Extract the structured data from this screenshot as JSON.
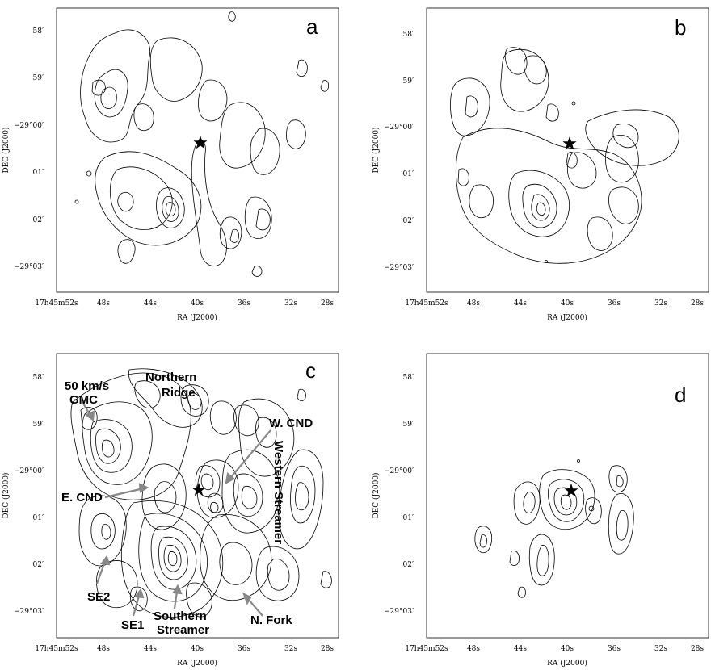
{
  "figure": {
    "panels": [
      {
        "id": "a",
        "letter": "a"
      },
      {
        "id": "b",
        "letter": "b"
      },
      {
        "id": "c",
        "letter": "c"
      },
      {
        "id": "d",
        "letter": "d"
      }
    ],
    "axes": {
      "xlabel": "RA (J2000)",
      "ylabel": "DEC (J2000)",
      "x_ticks": [
        "17h45m52s",
        "48s",
        "44s",
        "40s",
        "36s",
        "32s",
        "28s"
      ],
      "y_ticks": [
        "58′",
        "59′",
        "−29°00′",
        "01′",
        "02′",
        "−29°03′"
      ]
    },
    "annotations_c": [
      "50 km/s",
      "GMC",
      "Northern",
      "Ridge",
      "W. CND",
      "Western Streamer",
      "E. CND",
      "SE2",
      "SE1",
      "Southern",
      "Streamer",
      "N. Fork"
    ],
    "colors": {
      "ink": "#000000",
      "arrow": "#888888",
      "background": "#ffffff"
    },
    "icons": {
      "source_marker": "star-icon"
    }
  }
}
